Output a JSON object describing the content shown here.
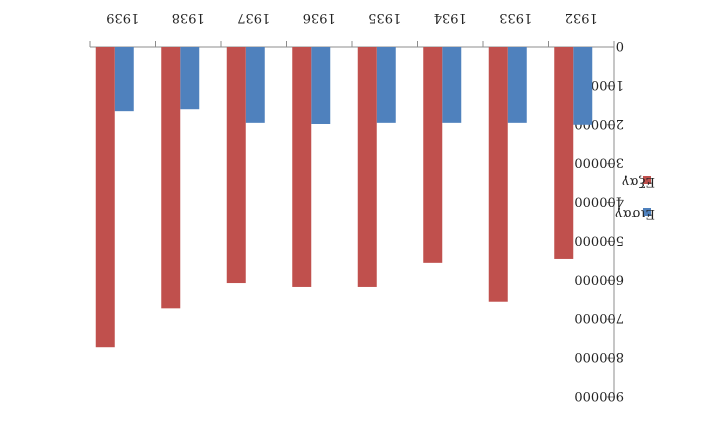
{
  "chart_data": {
    "type": "bar",
    "orientation": "inverted",
    "categories": [
      "1932",
      "1933",
      "1934",
      "1935",
      "1936",
      "1937",
      "1938",
      "1939"
    ],
    "series": [
      {
        "name": "Εισαγ",
        "color": "#4f81bd",
        "values": [
          200000,
          195000,
          195000,
          195000,
          198000,
          195000,
          160000,
          165000
        ]
      },
      {
        "name": "Εξαγ",
        "color": "#c0504d",
        "values": [
          545000,
          655000,
          555000,
          617000,
          617000,
          607000,
          672000,
          772000
        ]
      }
    ],
    "y_ticks": [
      "0",
      "100000",
      "200000",
      "300000",
      "400000",
      "500000",
      "600000",
      "700000",
      "800000",
      "900000"
    ],
    "ylim": [
      0,
      900000
    ],
    "legend_position": "right",
    "grid": false
  }
}
